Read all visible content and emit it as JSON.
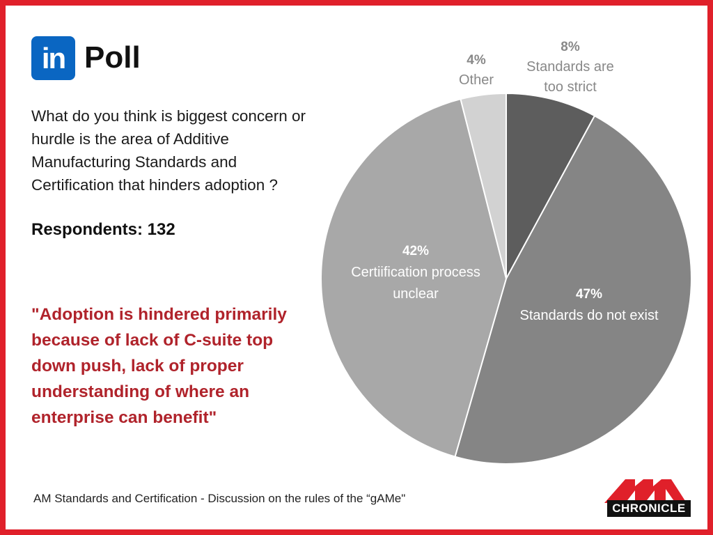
{
  "header": {
    "logo_text": "in",
    "title": "Poll"
  },
  "question": "What do you think is biggest concern or hurdle is the area of Additive Manufacturing Standards and Certification that hinders adoption ?",
  "respondents": "Respondents: 132",
  "quote": "\"Adoption is hindered primarily because of lack of C-suite top down push, lack of proper understanding of where an enterprise can benefit\"",
  "footer": "AM Standards and Certification - Discussion on the rules of the “gAMe\"",
  "logo_text": "CHRONICLE",
  "colors": {
    "border": "#e0202a",
    "quote": "#b0232b",
    "linkedin": "#0a66c2"
  },
  "chart_data": {
    "type": "pie",
    "slices": [
      {
        "value": 8,
        "pct_label": "8%",
        "label_lines": [
          "Standards are",
          "too strict"
        ],
        "color": "#5d5d5d",
        "label_color": "#888888"
      },
      {
        "value": 47,
        "pct_label": "47%",
        "label_lines": [
          "Standards do not exist"
        ],
        "color": "#858585",
        "label_color": "#ffffff"
      },
      {
        "value": 42,
        "pct_label": "42%",
        "label_lines": [
          "Certiification process",
          "unclear"
        ],
        "color": "#a8a8a8",
        "label_color": "#ffffff"
      },
      {
        "value": 4,
        "pct_label": "4%",
        "label_lines": [
          "Other"
        ],
        "color": "#d2d2d2",
        "label_color": "#888888"
      }
    ]
  }
}
